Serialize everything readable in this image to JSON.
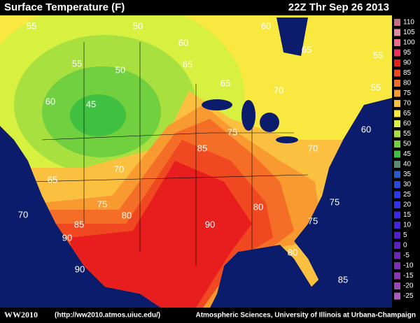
{
  "header": {
    "title": "Surface Temperature (F)",
    "timestamp": "22Z Thr Sep 26 2013"
  },
  "legend": {
    "items": [
      {
        "label": 110,
        "color": "#c86a8c"
      },
      {
        "label": 105,
        "color": "#e08aa8"
      },
      {
        "label": 100,
        "color": "#f06a8a"
      },
      {
        "label": 95,
        "color": "#f0305a"
      },
      {
        "label": 90,
        "color": "#e81e1e"
      },
      {
        "label": 85,
        "color": "#f04820"
      },
      {
        "label": 80,
        "color": "#f46e28"
      },
      {
        "label": 75,
        "color": "#f89a30"
      },
      {
        "label": 70,
        "color": "#fcc040"
      },
      {
        "label": 65,
        "color": "#f8e840"
      },
      {
        "label": 60,
        "color": "#d8f040"
      },
      {
        "label": 55,
        "color": "#a8e040"
      },
      {
        "label": 50,
        "color": "#70d040"
      },
      {
        "label": 45,
        "color": "#40c040"
      },
      {
        "label": 40,
        "color": "#5a8a70"
      },
      {
        "label": 35,
        "color": "#2a5ad0"
      },
      {
        "label": 30,
        "color": "#2a48e0"
      },
      {
        "label": 25,
        "color": "#2a3af0"
      },
      {
        "label": 20,
        "color": "#3030f0"
      },
      {
        "label": 15,
        "color": "#3a28e8"
      },
      {
        "label": 10,
        "color": "#4424e0"
      },
      {
        "label": 5,
        "color": "#5020d0"
      },
      {
        "label": 0,
        "color": "#5c20c0"
      },
      {
        "label": -5,
        "color": "#6a28b8"
      },
      {
        "label": -10,
        "color": "#7a30b0"
      },
      {
        "label": -15,
        "color": "#8a38b0"
      },
      {
        "label": -20,
        "color": "#9a48b8"
      },
      {
        "label": -25,
        "color": "#aa58c0"
      }
    ]
  },
  "contour_labels": [
    55,
    50,
    60,
    60,
    65,
    55,
    55,
    50,
    65,
    65,
    70,
    55,
    60,
    45,
    60,
    75,
    85,
    70,
    70,
    65,
    75,
    80,
    80,
    75,
    70,
    85,
    90,
    75,
    90,
    80,
    90,
    85
  ],
  "footer": {
    "brand": "WW2010",
    "url": "(http://ww2010.atmos.uiuc.edu/)",
    "credit": "Atmospheric Sciences, University of Illinois at Urbana-Champaign"
  }
}
